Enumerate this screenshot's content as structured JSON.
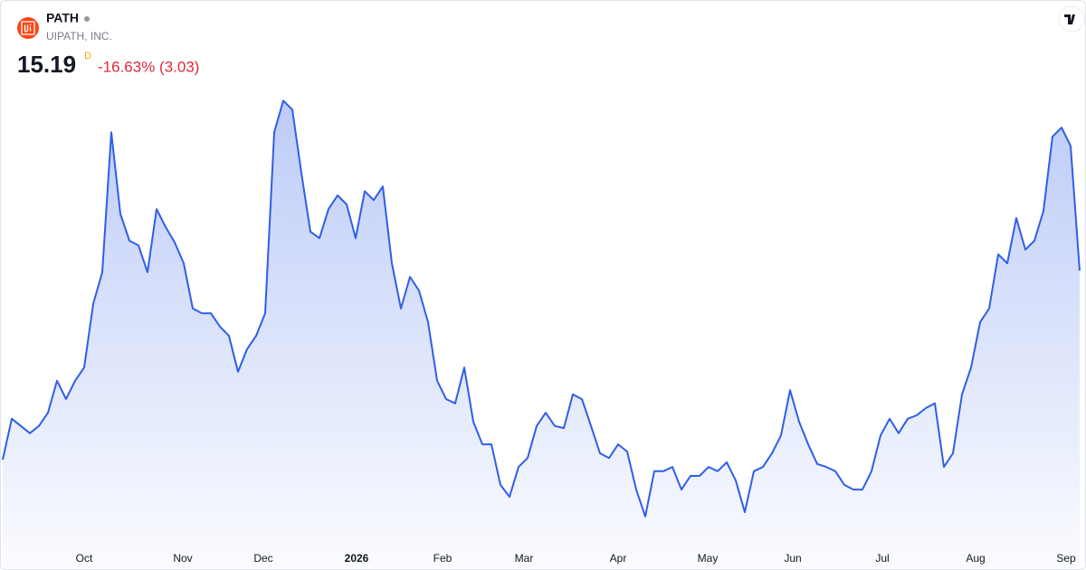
{
  "header": {
    "symbol": "PATH",
    "company": "UIPATH, INC.",
    "price": "15.19",
    "interval": "D",
    "change": "-16.63% (3.03)"
  },
  "chart_data": {
    "type": "area",
    "color": "#2f5ee8",
    "xlim": [
      0,
      119
    ],
    "ylim": [
      8.79,
      19.6
    ],
    "xticks": [
      {
        "value": 9,
        "label": "Oct"
      },
      {
        "value": 19.9,
        "label": "Nov"
      },
      {
        "value": 28.8,
        "label": "Dec"
      },
      {
        "value": 39.1,
        "label": "2026"
      },
      {
        "value": 48.6,
        "label": "Feb"
      },
      {
        "value": 57.6,
        "label": "Mar"
      },
      {
        "value": 68,
        "label": "Apr"
      },
      {
        "value": 77.9,
        "label": "May"
      },
      {
        "value": 87.3,
        "label": "Jun"
      },
      {
        "value": 97.2,
        "label": "Jul"
      },
      {
        "value": 107.5,
        "label": "Aug"
      },
      {
        "value": 117.5,
        "label": "Sep"
      }
    ],
    "values": [
      10.76,
      11.72,
      11.55,
      11.38,
      11.55,
      11.86,
      12.61,
      12.18,
      12.61,
      12.92,
      14.41,
      15.15,
      18.43,
      16.52,
      15.89,
      15.78,
      15.15,
      16.63,
      16.21,
      15.85,
      15.36,
      14.3,
      14.19,
      14.19,
      13.88,
      13.66,
      12.82,
      13.35,
      13.66,
      14.19,
      18.43,
      19.17,
      18.96,
      17.48,
      16.1,
      15.95,
      16.63,
      16.95,
      16.74,
      15.95,
      17.05,
      16.84,
      17.16,
      15.36,
      14.3,
      15.04,
      14.72,
      13.98,
      12.61,
      12.18,
      12.08,
      12.92,
      11.65,
      11.12,
      11.12,
      10.17,
      9.89,
      10.59,
      10.8,
      11.55,
      11.86,
      11.55,
      11.5,
      12.29,
      12.18,
      11.55,
      10.91,
      10.8,
      11.12,
      10.95,
      10.06,
      9.43,
      10.49,
      10.49,
      10.59,
      10.06,
      10.38,
      10.38,
      10.59,
      10.49,
      10.7,
      10.27,
      9.53,
      10.49,
      10.59,
      10.91,
      11.33,
      12.39,
      11.65,
      11.12,
      10.66,
      10.59,
      10.49,
      10.17,
      10.06,
      10.06,
      10.49,
      11.33,
      11.72,
      11.38,
      11.72,
      11.8,
      11.97,
      12.08,
      10.59,
      10.91,
      12.29,
      12.92,
      13.98,
      14.3,
      15.57,
      15.36,
      16.42,
      15.68,
      15.89,
      16.59,
      18.33,
      18.54,
      18.11,
      15.19
    ]
  }
}
